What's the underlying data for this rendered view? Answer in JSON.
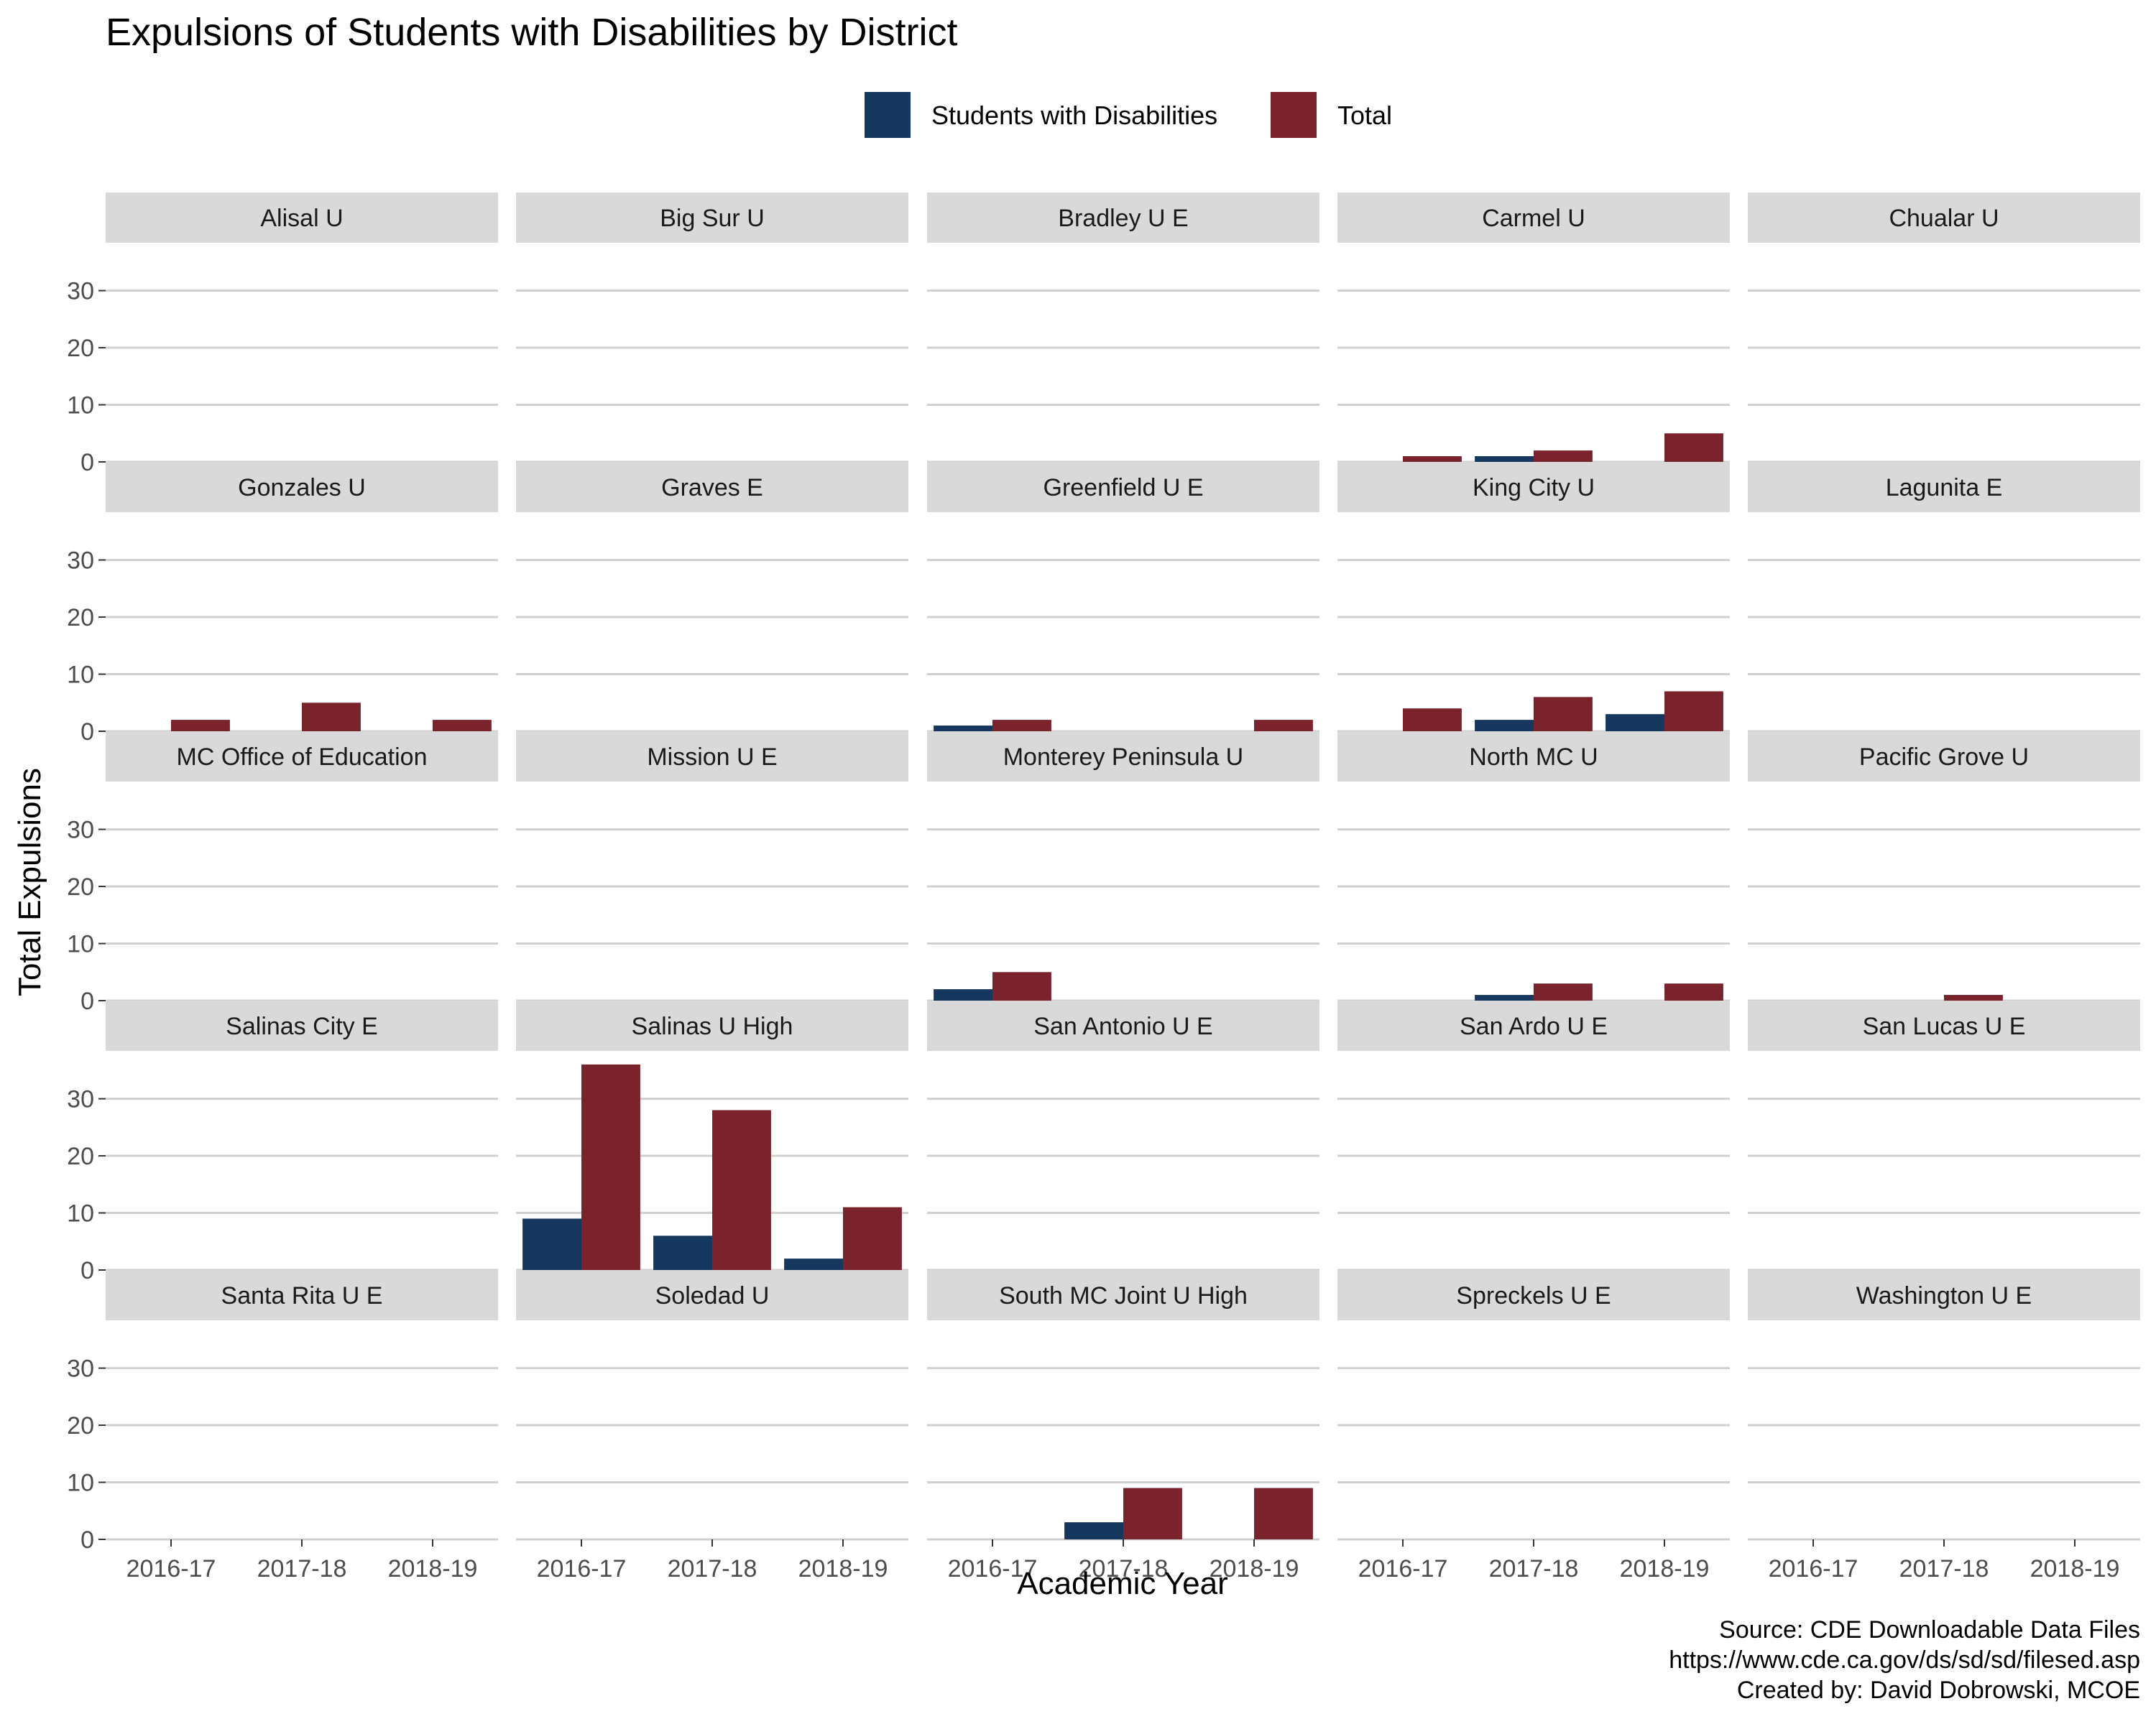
{
  "chart_data": {
    "type": "bar",
    "title": "Expulsions of Students with Disabilities by District",
    "xlabel": "Academic Year",
    "ylabel": "Total Expulsions",
    "ylim": [
      0,
      38
    ],
    "yticks": [
      0,
      10,
      20,
      30
    ],
    "categories": [
      "2016-17",
      "2017-18",
      "2018-19"
    ],
    "legend": {
      "position": "top",
      "items": [
        {
          "name": "Students with Disabilities",
          "color": "#16375e"
        },
        {
          "name": "Total",
          "color": "#7b232d"
        }
      ]
    },
    "grid": true,
    "panels": [
      {
        "name": "Alisal U",
        "series": [
          {
            "name": "Students with Disabilities",
            "values": [
              0,
              0,
              0
            ]
          },
          {
            "name": "Total",
            "values": [
              0,
              0,
              0
            ]
          }
        ]
      },
      {
        "name": "Big Sur U",
        "series": [
          {
            "name": "Students with Disabilities",
            "values": [
              0,
              0,
              0
            ]
          },
          {
            "name": "Total",
            "values": [
              0,
              0,
              0
            ]
          }
        ]
      },
      {
        "name": "Bradley U E",
        "series": [
          {
            "name": "Students with Disabilities",
            "values": [
              0,
              0,
              0
            ]
          },
          {
            "name": "Total",
            "values": [
              0,
              0,
              0
            ]
          }
        ]
      },
      {
        "name": "Carmel U",
        "series": [
          {
            "name": "Students with Disabilities",
            "values": [
              0,
              1,
              0
            ]
          },
          {
            "name": "Total",
            "values": [
              1,
              2,
              5
            ]
          }
        ]
      },
      {
        "name": "Chualar U",
        "series": [
          {
            "name": "Students with Disabilities",
            "values": [
              0,
              0,
              0
            ]
          },
          {
            "name": "Total",
            "values": [
              0,
              0,
              0
            ]
          }
        ]
      },
      {
        "name": "Gonzales U",
        "series": [
          {
            "name": "Students with Disabilities",
            "values": [
              0,
              0,
              0
            ]
          },
          {
            "name": "Total",
            "values": [
              2,
              5,
              2
            ]
          }
        ]
      },
      {
        "name": "Graves E",
        "series": [
          {
            "name": "Students with Disabilities",
            "values": [
              0,
              0,
              0
            ]
          },
          {
            "name": "Total",
            "values": [
              0,
              0,
              0
            ]
          }
        ]
      },
      {
        "name": "Greenfield U E",
        "series": [
          {
            "name": "Students with Disabilities",
            "values": [
              1,
              0,
              0
            ]
          },
          {
            "name": "Total",
            "values": [
              2,
              0,
              2
            ]
          }
        ]
      },
      {
        "name": "King City U",
        "series": [
          {
            "name": "Students with Disabilities",
            "values": [
              0,
              2,
              3
            ]
          },
          {
            "name": "Total",
            "values": [
              4,
              6,
              7
            ]
          }
        ]
      },
      {
        "name": "Lagunita E",
        "series": [
          {
            "name": "Students with Disabilities",
            "values": [
              0,
              0,
              0
            ]
          },
          {
            "name": "Total",
            "values": [
              0,
              0,
              0
            ]
          }
        ]
      },
      {
        "name": "MC Office of Education",
        "series": [
          {
            "name": "Students with Disabilities",
            "values": [
              0,
              0,
              0
            ]
          },
          {
            "name": "Total",
            "values": [
              0,
              0,
              0
            ]
          }
        ]
      },
      {
        "name": "Mission U E",
        "series": [
          {
            "name": "Students with Disabilities",
            "values": [
              0,
              0,
              0
            ]
          },
          {
            "name": "Total",
            "values": [
              0,
              0,
              0
            ]
          }
        ]
      },
      {
        "name": "Monterey Peninsula U",
        "series": [
          {
            "name": "Students with Disabilities",
            "values": [
              2,
              0,
              0
            ]
          },
          {
            "name": "Total",
            "values": [
              5,
              0,
              0
            ]
          }
        ]
      },
      {
        "name": "North MC U",
        "series": [
          {
            "name": "Students with Disabilities",
            "values": [
              0,
              1,
              0
            ]
          },
          {
            "name": "Total",
            "values": [
              0,
              3,
              3
            ]
          }
        ]
      },
      {
        "name": "Pacific Grove U",
        "series": [
          {
            "name": "Students with Disabilities",
            "values": [
              0,
              0,
              0
            ]
          },
          {
            "name": "Total",
            "values": [
              0,
              1,
              0
            ]
          }
        ]
      },
      {
        "name": "Salinas City E",
        "series": [
          {
            "name": "Students with Disabilities",
            "values": [
              0,
              0,
              0
            ]
          },
          {
            "name": "Total",
            "values": [
              0,
              0,
              0
            ]
          }
        ]
      },
      {
        "name": "Salinas U High",
        "series": [
          {
            "name": "Students with Disabilities",
            "values": [
              9,
              6,
              2
            ]
          },
          {
            "name": "Total",
            "values": [
              36,
              28,
              11
            ]
          }
        ]
      },
      {
        "name": "San Antonio U E",
        "series": [
          {
            "name": "Students with Disabilities",
            "values": [
              0,
              0,
              0
            ]
          },
          {
            "name": "Total",
            "values": [
              0,
              0,
              0
            ]
          }
        ]
      },
      {
        "name": "San Ardo U E",
        "series": [
          {
            "name": "Students with Disabilities",
            "values": [
              0,
              0,
              0
            ]
          },
          {
            "name": "Total",
            "values": [
              0,
              0,
              0
            ]
          }
        ]
      },
      {
        "name": "San Lucas U E",
        "series": [
          {
            "name": "Students with Disabilities",
            "values": [
              0,
              0,
              0
            ]
          },
          {
            "name": "Total",
            "values": [
              0,
              0,
              0
            ]
          }
        ]
      },
      {
        "name": "Santa Rita U E",
        "series": [
          {
            "name": "Students with Disabilities",
            "values": [
              0,
              0,
              0
            ]
          },
          {
            "name": "Total",
            "values": [
              0,
              0,
              0
            ]
          }
        ]
      },
      {
        "name": "Soledad U",
        "series": [
          {
            "name": "Students with Disabilities",
            "values": [
              0,
              0,
              0
            ]
          },
          {
            "name": "Total",
            "values": [
              0,
              0,
              0
            ]
          }
        ]
      },
      {
        "name": "South MC Joint U High",
        "series": [
          {
            "name": "Students with Disabilities",
            "values": [
              0,
              3,
              0
            ]
          },
          {
            "name": "Total",
            "values": [
              0,
              9,
              9
            ]
          }
        ]
      },
      {
        "name": "Spreckels U E",
        "series": [
          {
            "name": "Students with Disabilities",
            "values": [
              0,
              0,
              0
            ]
          },
          {
            "name": "Total",
            "values": [
              0,
              0,
              0
            ]
          }
        ]
      },
      {
        "name": "Washington U E",
        "series": [
          {
            "name": "Students with Disabilities",
            "values": [
              0,
              0,
              0
            ]
          },
          {
            "name": "Total",
            "values": [
              0,
              0,
              0
            ]
          }
        ]
      }
    ],
    "caption": [
      "Source: CDE Downloadable Data Files",
      "https://www.cde.ca.gov/ds/sd/sd/filesed.asp",
      "Created by: David Dobrowski, MCOE"
    ]
  }
}
